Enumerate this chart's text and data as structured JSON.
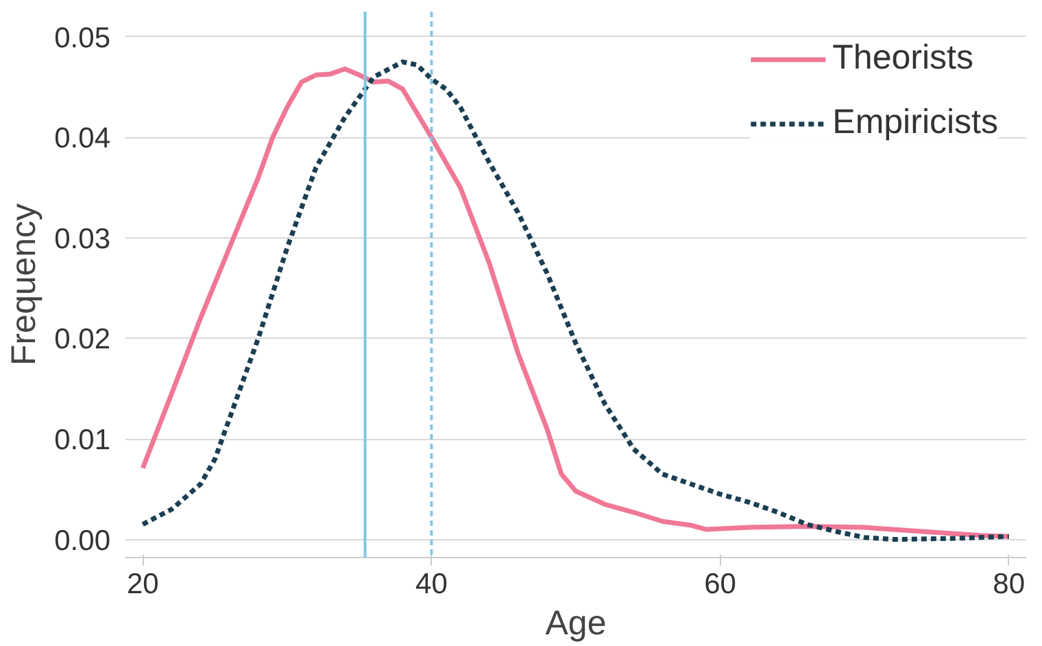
{
  "chart_data": {
    "type": "line",
    "xlabel": "Age",
    "ylabel": "Frequency",
    "xlim": [
      18.8,
      81.2
    ],
    "ylim": [
      -0.0018,
      0.0525
    ],
    "xticks": [
      20,
      40,
      60,
      80
    ],
    "yticks": [
      {
        "value": 0,
        "label": "0.00"
      },
      {
        "value": 0.01,
        "label": "0.01"
      },
      {
        "value": 0.02,
        "label": "0.02"
      },
      {
        "value": 0.03,
        "label": "0.03"
      },
      {
        "value": 0.04,
        "label": "0.04"
      },
      {
        "value": 0.05,
        "label": "0.05"
      }
    ],
    "grid": "y",
    "legend": "top right",
    "marker": "none",
    "series": [
      {
        "name": "Theorists",
        "color": "#f07896",
        "line_style": "solid",
        "x": [
          20,
          22,
          24,
          26,
          28,
          29,
          30,
          31,
          32,
          33,
          34,
          35,
          36,
          37,
          38,
          40,
          42,
          44,
          46,
          48,
          49,
          50,
          52,
          54,
          56,
          58,
          59,
          62,
          66,
          70,
          74,
          78,
          80
        ],
        "values": [
          0.0071,
          0.0145,
          0.022,
          0.029,
          0.036,
          0.04,
          0.043,
          0.0455,
          0.0462,
          0.0463,
          0.0468,
          0.0462,
          0.0455,
          0.0456,
          0.0448,
          0.04,
          0.035,
          0.0275,
          0.0185,
          0.011,
          0.0065,
          0.0048,
          0.0035,
          0.0027,
          0.0018,
          0.0014,
          0.001,
          0.0012,
          0.0013,
          0.0012,
          0.0008,
          0.0004,
          0.0003
        ]
      },
      {
        "name": "Empiricists",
        "color": "#1b3f52",
        "line_style": "dashed",
        "x": [
          20,
          22,
          24,
          25,
          26,
          28,
          30,
          32,
          34,
          36,
          38,
          39,
          40,
          41,
          42,
          44,
          46,
          48,
          50,
          52,
          54,
          56,
          58,
          60,
          62,
          64,
          66,
          68,
          70,
          72,
          76,
          80
        ],
        "values": [
          0.0015,
          0.003,
          0.0055,
          0.008,
          0.012,
          0.02,
          0.029,
          0.037,
          0.042,
          0.046,
          0.0475,
          0.0472,
          0.0458,
          0.0448,
          0.043,
          0.0375,
          0.0325,
          0.0265,
          0.0195,
          0.0135,
          0.009,
          0.0065,
          0.0055,
          0.0045,
          0.0037,
          0.0027,
          0.0015,
          0.0008,
          0.0002,
          0.0,
          0.0001,
          0.0003
        ]
      }
    ],
    "ref_lines": [
      {
        "axis": "x",
        "value": 35.4,
        "color": "#7ec8e3",
        "line_style": "solid"
      },
      {
        "axis": "x",
        "value": 40,
        "color": "#7ec8e3",
        "line_style": "dashed"
      }
    ]
  }
}
